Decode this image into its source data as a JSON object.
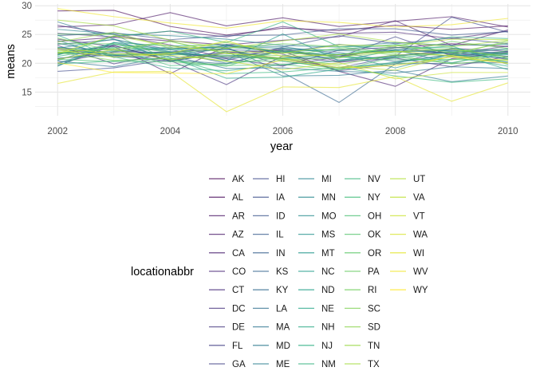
{
  "chart_data": {
    "type": "line",
    "xlabel": "year",
    "ylabel": "means",
    "xlim": [
      2001.6,
      2010.4
    ],
    "ylim": [
      10.9,
      30.3
    ],
    "x_ticks": [
      2002,
      2004,
      2006,
      2008,
      2010
    ],
    "y_ticks": [
      15,
      20,
      25,
      30
    ],
    "grid": true,
    "legend_title": "locationabbr",
    "legend_position": "bottom",
    "x": [
      2002,
      2003,
      2004,
      2005,
      2006,
      2007,
      2008,
      2009,
      2010
    ],
    "series": [
      {
        "name": "AK",
        "values": [
          29.1,
          29.2,
          26.4,
          24.9,
          26.1,
          25.7,
          26.6,
          25.9,
          26.5
        ]
      },
      {
        "name": "AL",
        "values": [
          21.6,
          23.1,
          20.4,
          21.8,
          22.3,
          21.1,
          22.7,
          23.4,
          22.9
        ]
      },
      {
        "name": "AR",
        "values": [
          26.3,
          26.7,
          28.8,
          26.5,
          27.9,
          26.4,
          27.3,
          28.1,
          26.3
        ]
      },
      {
        "name": "AZ",
        "values": [
          23.8,
          24.5,
          23.9,
          23.2,
          24.0,
          24.6,
          27.4,
          23.1,
          25.8
        ]
      },
      {
        "name": "CA",
        "values": [
          24.2,
          22.9,
          18.2,
          23.0,
          22.1,
          18.6,
          16.0,
          20.8,
          21.9
        ]
      },
      {
        "name": "CO",
        "values": [
          25.2,
          24.6,
          25.6,
          24.6,
          26.4,
          25.2,
          25.4,
          24.3,
          25.6
        ]
      },
      {
        "name": "CT",
        "values": [
          26.6,
          25.0,
          23.2,
          20.9,
          22.6,
          20.3,
          21.4,
          22.0,
          20.7
        ]
      },
      {
        "name": "DC",
        "values": [
          19.6,
          23.1,
          20.5,
          16.3,
          21.3,
          20.2,
          20.9,
          19.4,
          21.2
        ]
      },
      {
        "name": "DE",
        "values": [
          23.1,
          19.9,
          21.9,
          20.8,
          19.5,
          22.3,
          22.8,
          21.6,
          23.0
        ]
      },
      {
        "name": "FL",
        "values": [
          22.5,
          21.4,
          20.3,
          23.3,
          21.6,
          18.7,
          19.9,
          22.6,
          22.1
        ]
      },
      {
        "name": "GA",
        "values": [
          20.1,
          22.0,
          21.9,
          22.6,
          19.6,
          21.1,
          24.6,
          21.3,
          22.1
        ]
      },
      {
        "name": "HI",
        "values": [
          18.6,
          19.2,
          20.7,
          22.1,
          20.8,
          19.2,
          21.2,
          28.0,
          25.4
        ]
      },
      {
        "name": "IA",
        "values": [
          23.3,
          24.1,
          22.4,
          20.5,
          22.8,
          24.8,
          23.4,
          24.4,
          23.4
        ]
      },
      {
        "name": "ID",
        "values": [
          24.8,
          25.3,
          24.1,
          24.8,
          24.9,
          26.0,
          26.0,
          24.9,
          25.5
        ]
      },
      {
        "name": "IL",
        "values": [
          22.7,
          22.3,
          21.6,
          21.2,
          21.9,
          21.3,
          22.4,
          21.7,
          22.5
        ]
      },
      {
        "name": "IN",
        "values": [
          21.9,
          21.2,
          22.0,
          22.4,
          21.9,
          23.3,
          22.1,
          22.3,
          21.2
        ]
      },
      {
        "name": "KS",
        "values": [
          20.8,
          21.9,
          22.6,
          22.8,
          18.4,
          13.2,
          19.9,
          20.0,
          20.2
        ]
      },
      {
        "name": "KY",
        "values": [
          23.5,
          21.6,
          22.0,
          20.0,
          22.2,
          20.6,
          21.1,
          22.5,
          21.6
        ]
      },
      {
        "name": "LA",
        "values": [
          20.9,
          21.4,
          20.6,
          19.9,
          22.5,
          21.9,
          20.3,
          21.5,
          22.0
        ]
      },
      {
        "name": "MA",
        "values": [
          20.4,
          19.4,
          21.3,
          19.1,
          19.2,
          18.6,
          18.3,
          19.4,
          19.1
        ]
      },
      {
        "name": "MD",
        "values": [
          27.2,
          24.2,
          20.3,
          22.0,
          17.8,
          17.9,
          18.8,
          16.8,
          17.8
        ]
      },
      {
        "name": "ME",
        "values": [
          20.5,
          23.6,
          21.9,
          23.1,
          22.9,
          21.5,
          22.1,
          21.2,
          21.8
        ]
      },
      {
        "name": "MI",
        "values": [
          25.9,
          25.1,
          24.8,
          24.2,
          23.1,
          22.8,
          23.6,
          23.1,
          23.3
        ]
      },
      {
        "name": "MN",
        "values": [
          24.0,
          21.0,
          21.5,
          22.5,
          20.4,
          19.2,
          20.1,
          21.5,
          20.9
        ]
      },
      {
        "name": "MO",
        "values": [
          19.9,
          23.3,
          22.5,
          23.0,
          22.6,
          22.2,
          22.0,
          22.2,
          21.5
        ]
      },
      {
        "name": "MS",
        "values": [
          22.6,
          24.2,
          22.0,
          21.0,
          20.9,
          21.6,
          19.2,
          21.6,
          20.2
        ]
      },
      {
        "name": "MT",
        "values": [
          21.7,
          22.1,
          22.8,
          20.5,
          25.1,
          20.4,
          22.3,
          20.1,
          21.7
        ]
      },
      {
        "name": "NC",
        "values": [
          22.8,
          21.4,
          21.6,
          21.4,
          20.8,
          21.1,
          20.9,
          21.9,
          21.2
        ]
      },
      {
        "name": "ND",
        "values": [
          19.5,
          23.6,
          23.0,
          23.2,
          21.9,
          21.6,
          22.3,
          23.0,
          19.8
        ]
      },
      {
        "name": "NE",
        "values": [
          21.5,
          23.4,
          21.0,
          17.4,
          17.6,
          19.0,
          20.2,
          21.1,
          19.5
        ]
      },
      {
        "name": "NH",
        "values": [
          24.9,
          21.1,
          19.2,
          18.7,
          19.8,
          20.4,
          21.3,
          21.9,
          18.9
        ]
      },
      {
        "name": "NJ",
        "values": [
          21.2,
          22.8,
          22.3,
          22.8,
          22.0,
          22.4,
          23.3,
          22.0,
          22.5
        ]
      },
      {
        "name": "NM",
        "values": [
          21.4,
          24.7,
          25.6,
          23.6,
          27.2,
          22.9,
          23.0,
          24.6,
          24.3
        ]
      },
      {
        "name": "NV",
        "values": [
          19.9,
          20.4,
          20.9,
          18.2,
          18.5,
          19.3,
          17.8,
          16.7,
          17.3
        ]
      },
      {
        "name": "NY",
        "values": [
          22.2,
          22.6,
          19.6,
          19.9,
          21.0,
          21.5,
          22.7,
          22.7,
          20.8
        ]
      },
      {
        "name": "OH",
        "values": [
          20.7,
          20.3,
          20.3,
          19.5,
          22.3,
          21.1,
          20.6,
          20.7,
          20.5
        ]
      },
      {
        "name": "OK",
        "values": [
          25.1,
          25.0,
          20.5,
          19.6,
          19.8,
          18.8,
          21.1,
          20.0,
          22.3
        ]
      },
      {
        "name": "OR",
        "values": [
          23.4,
          23.4,
          21.8,
          20.3,
          20.4,
          19.0,
          19.9,
          20.6,
          21.8
        ]
      },
      {
        "name": "PA",
        "values": [
          22.0,
          21.5,
          21.8,
          22.6,
          23.4,
          22.9,
          21.7,
          23.8,
          22.6
        ]
      },
      {
        "name": "RI",
        "values": [
          24.4,
          22.1,
          23.8,
          21.7,
          21.3,
          22.6,
          21.4,
          19.9,
          20.7
        ]
      },
      {
        "name": "SC",
        "values": [
          21.9,
          20.5,
          20.8,
          21.3,
          20.6,
          20.9,
          23.1,
          21.8,
          23.6
        ]
      },
      {
        "name": "SD",
        "values": [
          21.9,
          22.5,
          23.8,
          21.7,
          20.7,
          19.8,
          21.5,
          21.4,
          23.9
        ]
      },
      {
        "name": "TN",
        "values": [
          23.7,
          25.4,
          22.6,
          23.6,
          21.9,
          21.1,
          22.0,
          22.5,
          21.1
        ]
      },
      {
        "name": "TX",
        "values": [
          27.5,
          26.5,
          24.0,
          22.6,
          23.9,
          25.1,
          23.7,
          22.9,
          24.0
        ]
      },
      {
        "name": "UT",
        "values": [
          21.7,
          24.8,
          23.0,
          22.1,
          21.7,
          23.2,
          23.0,
          24.2,
          24.1
        ]
      },
      {
        "name": "VA",
        "values": [
          20.7,
          22.4,
          20.6,
          21.8,
          20.9,
          19.5,
          18.8,
          21.3,
          20.0
        ]
      },
      {
        "name": "VT",
        "values": [
          22.6,
          21.7,
          21.4,
          20.4,
          18.9,
          20.1,
          17.3,
          18.4,
          18.4
        ]
      },
      {
        "name": "WA",
        "values": [
          22.3,
          21.1,
          21.7,
          23.9,
          21.2,
          21.5,
          22.1,
          21.3,
          20.5
        ]
      },
      {
        "name": "WI",
        "values": [
          16.5,
          18.5,
          18.6,
          11.6,
          15.9,
          15.8,
          17.7,
          13.4,
          16.6
        ]
      },
      {
        "name": "WV",
        "values": [
          29.5,
          28.1,
          27.0,
          26.1,
          27.4,
          27.1,
          26.3,
          26.7,
          27.8
        ]
      },
      {
        "name": "WY",
        "values": [
          20.1,
          18.4,
          18.3,
          18.2,
          20.6,
          19.2,
          19.6,
          21.1,
          20.0
        ]
      }
    ]
  }
}
